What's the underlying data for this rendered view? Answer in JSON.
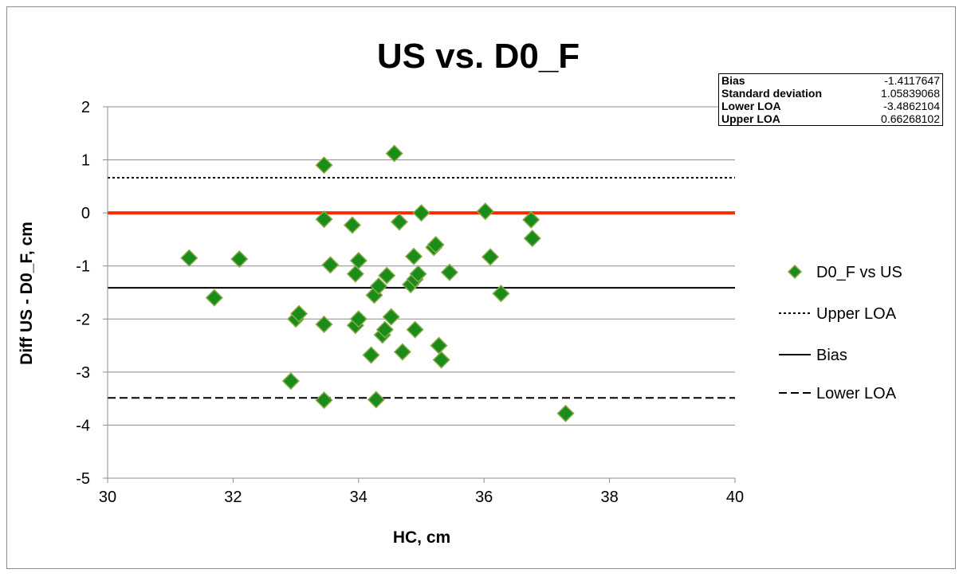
{
  "chart_data": {
    "type": "scatter",
    "title": "US vs. D0_F",
    "xlabel": "HC, cm",
    "ylabel": "Diff US - D0_F, cm",
    "xlim": [
      30,
      40
    ],
    "ylim": [
      -5,
      2
    ],
    "xticks": [
      "30",
      "32",
      "34",
      "36",
      "38",
      "40"
    ],
    "yticks": [
      "2",
      "1",
      "0",
      "-1",
      "-2",
      "-3",
      "-4",
      "-5"
    ],
    "grid": "horizontal",
    "legend_position": "right",
    "series": [
      {
        "name": "D0_F vs US",
        "marker": "diamond",
        "color": "#1a8c1a",
        "points": [
          [
            31.3,
            -0.85
          ],
          [
            31.7,
            -1.6
          ],
          [
            32.1,
            -0.87
          ],
          [
            32.92,
            -3.17
          ],
          [
            33.0,
            -2.0
          ],
          [
            33.05,
            -1.9
          ],
          [
            33.45,
            0.9
          ],
          [
            33.45,
            -0.12
          ],
          [
            33.45,
            -2.1
          ],
          [
            33.45,
            -3.53
          ],
          [
            33.55,
            -0.98
          ],
          [
            33.9,
            -0.23
          ],
          [
            33.95,
            -2.12
          ],
          [
            33.95,
            -1.15
          ],
          [
            34.0,
            -0.9
          ],
          [
            34.0,
            -2.0
          ],
          [
            34.2,
            -2.68
          ],
          [
            34.25,
            -1.55
          ],
          [
            34.28,
            -3.52
          ],
          [
            34.32,
            -1.38
          ],
          [
            34.38,
            -2.3
          ],
          [
            34.42,
            -2.2
          ],
          [
            34.45,
            -1.18
          ],
          [
            34.52,
            -1.96
          ],
          [
            34.57,
            1.12
          ],
          [
            34.65,
            -0.17
          ],
          [
            34.7,
            -2.62
          ],
          [
            34.83,
            -1.35
          ],
          [
            34.88,
            -0.82
          ],
          [
            34.9,
            -1.25
          ],
          [
            34.9,
            -2.2
          ],
          [
            34.95,
            -1.15
          ],
          [
            35.0,
            0.0
          ],
          [
            35.2,
            -0.65
          ],
          [
            35.23,
            -0.6
          ],
          [
            35.28,
            -2.5
          ],
          [
            35.32,
            -2.77
          ],
          [
            35.45,
            -1.12
          ],
          [
            36.02,
            0.03
          ],
          [
            36.1,
            -0.83
          ],
          [
            36.27,
            -1.52
          ],
          [
            36.75,
            -0.13
          ],
          [
            36.77,
            -0.48
          ],
          [
            37.3,
            -3.78
          ]
        ]
      }
    ],
    "reference_lines": [
      {
        "name": "Upper LOA",
        "y": 0.66268102,
        "style": "dotted",
        "color": "#000000"
      },
      {
        "name": "Bias",
        "y": -1.4117647,
        "style": "solid",
        "color": "#000000"
      },
      {
        "name": "Lower LOA",
        "y": -3.4862104,
        "style": "dashed",
        "color": "#000000"
      },
      {
        "name": "",
        "y": 0,
        "style": "solid",
        "color": "#ff2a00"
      }
    ],
    "legend": [
      {
        "label": "D0_F vs US",
        "kind": "marker"
      },
      {
        "label": "Upper LOA",
        "kind": "dotted"
      },
      {
        "label": "Bias",
        "kind": "solid"
      },
      {
        "label": "Lower LOA",
        "kind": "dashed"
      }
    ],
    "stats_table": [
      {
        "label": "Bias",
        "value": "-1.4117647"
      },
      {
        "label": "Standard deviation",
        "value": "1.05839068"
      },
      {
        "label": "Lower LOA",
        "value": "-3.4862104"
      },
      {
        "label": "Upper LOA",
        "value": "0.66268102"
      }
    ]
  }
}
